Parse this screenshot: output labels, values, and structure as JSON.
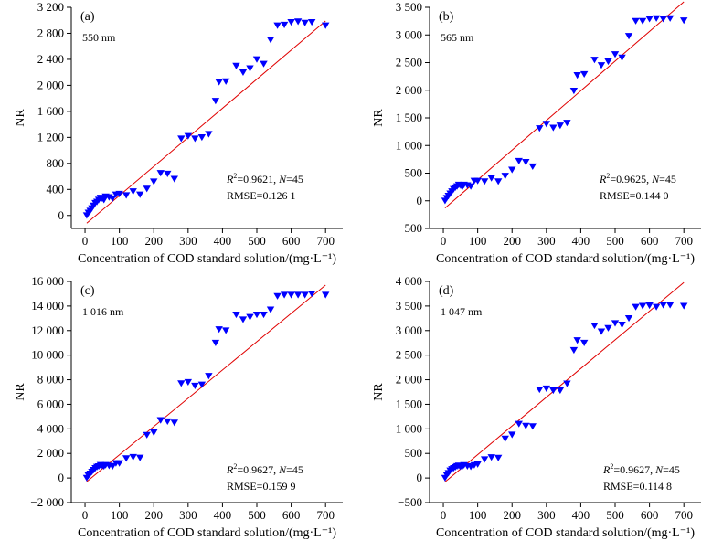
{
  "colors": {
    "marker": "#0000ff",
    "fit_line": "#e00000",
    "axis": "#000000"
  },
  "chart_data": [
    {
      "type": "scatter",
      "panel_label": "(a)",
      "wavelength": "550 nm",
      "xlabel": "Concentration of COD standard solution/(mg·L⁻¹)",
      "ylabel": "NR",
      "xlim": [
        -40,
        750
      ],
      "ylim": [
        -200,
        3200
      ],
      "xticks": [
        0,
        100,
        200,
        300,
        400,
        500,
        600,
        700
      ],
      "yticks": [
        0,
        400,
        800,
        1200,
        1600,
        2000,
        2400,
        2800,
        3200
      ],
      "yticklabels": [
        "0",
        "400",
        "800",
        "1 200",
        "1 600",
        "2 000",
        "2 400",
        "2 800",
        "3 200"
      ],
      "r2_label": "R",
      "r2_text": "=0.9621,  ",
      "n_label": "N",
      "n_text": "=45",
      "rmse_text": "RMSE=0.126 1",
      "fit_line": {
        "x": [
          5,
          700
        ],
        "y": [
          -120,
          2990
        ]
      },
      "points": {
        "x": [
          5,
          10,
          15,
          20,
          25,
          30,
          35,
          40,
          45,
          50,
          55,
          60,
          70,
          80,
          90,
          100,
          120,
          140,
          160,
          180,
          200,
          220,
          240,
          260,
          280,
          300,
          320,
          340,
          360,
          380,
          390,
          410,
          440,
          460,
          480,
          500,
          520,
          540,
          560,
          580,
          600,
          620,
          640,
          660,
          700
        ],
        "y": [
          0,
          40,
          70,
          110,
          150,
          190,
          210,
          240,
          270,
          260,
          240,
          290,
          280,
          260,
          320,
          330,
          310,
          370,
          320,
          410,
          520,
          650,
          640,
          560,
          1180,
          1220,
          1180,
          1200,
          1250,
          1760,
          2050,
          2060,
          2300,
          2200,
          2260,
          2400,
          2330,
          2700,
          2920,
          2930,
          2970,
          2980,
          2960,
          2970,
          2920
        ]
      }
    },
    {
      "type": "scatter",
      "panel_label": "(b)",
      "wavelength": "565 nm",
      "xlabel": "Concentration of COD standard solution/(mg·L⁻¹)",
      "ylabel": "NR",
      "xlim": [
        -40,
        750
      ],
      "ylim": [
        -500,
        3500
      ],
      "xticks": [
        0,
        100,
        200,
        300,
        400,
        500,
        600,
        700
      ],
      "yticks": [
        -500,
        0,
        500,
        1000,
        1500,
        2000,
        2500,
        3000,
        3500
      ],
      "yticklabels": [
        "−500",
        "0",
        "500",
        "1 000",
        "1 500",
        "2 000",
        "2 500",
        "3 000",
        "3 500"
      ],
      "r2_label": "R",
      "r2_text": "=0.9625,  ",
      "n_label": "N",
      "n_text": "=45",
      "rmse_text": "RMSE=0.144 0",
      "fit_line": {
        "x": [
          5,
          700
        ],
        "y": [
          -130,
          3600
        ]
      },
      "points": {
        "x": [
          5,
          10,
          15,
          20,
          25,
          30,
          35,
          40,
          45,
          50,
          55,
          60,
          70,
          80,
          90,
          100,
          120,
          140,
          160,
          180,
          200,
          220,
          240,
          260,
          280,
          300,
          320,
          340,
          360,
          380,
          390,
          410,
          440,
          460,
          480,
          500,
          520,
          540,
          560,
          580,
          600,
          620,
          640,
          660,
          700
        ],
        "y": [
          0,
          50,
          90,
          130,
          170,
          210,
          240,
          260,
          290,
          280,
          250,
          290,
          280,
          260,
          360,
          360,
          350,
          410,
          350,
          450,
          560,
          720,
          700,
          620,
          1310,
          1390,
          1320,
          1360,
          1410,
          1990,
          2270,
          2290,
          2550,
          2450,
          2520,
          2650,
          2590,
          2980,
          3250,
          3250,
          3290,
          3300,
          3290,
          3300,
          3260
        ]
      }
    },
    {
      "type": "scatter",
      "panel_label": "(c)",
      "wavelength": "1 016 nm",
      "xlabel": "Concentration of COD standard solution/(mg·L⁻¹)",
      "ylabel": "NR",
      "xlim": [
        -40,
        750
      ],
      "ylim": [
        -2000,
        16000
      ],
      "xticks": [
        0,
        100,
        200,
        300,
        400,
        500,
        600,
        700
      ],
      "yticks": [
        -2000,
        0,
        2000,
        4000,
        6000,
        8000,
        10000,
        12000,
        14000,
        16000
      ],
      "yticklabels": [
        "−2 000",
        "0",
        "2 000",
        "4 000",
        "6 000",
        "8 000",
        "10 000",
        "12 000",
        "14 000",
        "16 000"
      ],
      "r2_label": "R",
      "r2_text": "=0.9627,  ",
      "n_label": "N",
      "n_text": "=45",
      "rmse_text": "RMSE=0.159 9",
      "fit_line": {
        "x": [
          5,
          700
        ],
        "y": [
          -300,
          15700
        ]
      },
      "points": {
        "x": [
          5,
          10,
          15,
          20,
          25,
          30,
          35,
          40,
          45,
          50,
          55,
          60,
          70,
          80,
          90,
          100,
          120,
          140,
          160,
          180,
          200,
          220,
          240,
          260,
          280,
          300,
          320,
          340,
          360,
          380,
          390,
          410,
          440,
          460,
          480,
          500,
          520,
          540,
          560,
          580,
          600,
          620,
          640,
          660,
          700
        ],
        "y": [
          0,
          200,
          350,
          500,
          650,
          800,
          900,
          950,
          1050,
          1000,
          950,
          1050,
          1000,
          950,
          1200,
          1200,
          1600,
          1700,
          1650,
          3500,
          3700,
          4700,
          4600,
          4500,
          7700,
          7800,
          7500,
          7600,
          8300,
          11000,
          12100,
          12000,
          13300,
          12900,
          13100,
          13300,
          13300,
          13700,
          14800,
          14900,
          14900,
          14900,
          14900,
          15000,
          14900
        ]
      }
    },
    {
      "type": "scatter",
      "panel_label": "(d)",
      "wavelength": "1 047 nm",
      "xlabel": "Concentration of COD standard solution/(mg·L⁻¹)",
      "ylabel": "NR",
      "xlim": [
        -40,
        750
      ],
      "ylim": [
        -500,
        4000
      ],
      "xticks": [
        0,
        100,
        200,
        300,
        400,
        500,
        600,
        700
      ],
      "yticks": [
        -500,
        0,
        500,
        1000,
        1500,
        2000,
        2500,
        3000,
        3500,
        4000
      ],
      "yticklabels": [
        "−500",
        "0",
        "500",
        "1 000",
        "1 500",
        "2 000",
        "2 500",
        "3 000",
        "3 500",
        "4 000"
      ],
      "r2_label": "R",
      "r2_text": "=0.9627,  ",
      "n_label": "N",
      "n_text": "=45",
      "rmse_text": "RMSE=0.114 8",
      "fit_line": {
        "x": [
          5,
          700
        ],
        "y": [
          -80,
          3980
        ]
      },
      "points": {
        "x": [
          5,
          10,
          15,
          20,
          25,
          30,
          35,
          40,
          45,
          50,
          55,
          60,
          70,
          80,
          90,
          100,
          120,
          140,
          160,
          180,
          200,
          220,
          240,
          260,
          280,
          300,
          320,
          340,
          360,
          380,
          390,
          410,
          440,
          460,
          480,
          500,
          520,
          540,
          560,
          580,
          600,
          620,
          640,
          660,
          700
        ],
        "y": [
          0,
          60,
          100,
          150,
          180,
          200,
          220,
          240,
          250,
          230,
          230,
          260,
          240,
          230,
          260,
          280,
          380,
          420,
          410,
          800,
          880,
          1100,
          1060,
          1050,
          1800,
          1820,
          1780,
          1780,
          1920,
          2600,
          2800,
          2750,
          3100,
          2980,
          3050,
          3150,
          3120,
          3250,
          3480,
          3500,
          3510,
          3480,
          3520,
          3520,
          3500
        ]
      }
    }
  ]
}
